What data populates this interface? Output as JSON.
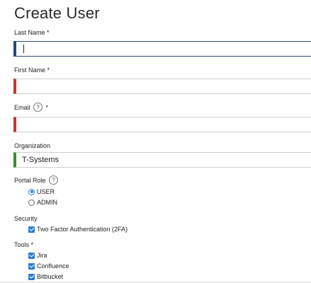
{
  "page": {
    "title": "Create User"
  },
  "form": {
    "last_name": {
      "label": "Last Name *",
      "value": ""
    },
    "first_name": {
      "label": "First Name *",
      "value": ""
    },
    "email": {
      "label": "Email",
      "required_marker": "*",
      "help": "?",
      "value": ""
    },
    "organization": {
      "label": "Organization",
      "value": "T-Systems"
    },
    "portal_role": {
      "label": "Portal Role",
      "help": "?",
      "options": [
        {
          "label": "USER",
          "selected": true
        },
        {
          "label": "ADMIN",
          "selected": false
        }
      ]
    },
    "security": {
      "label": "Security",
      "options": [
        {
          "label": "Two Factor Authentication (2FA)",
          "checked": true
        }
      ]
    },
    "tools": {
      "label": "Tools *",
      "options": [
        {
          "label": "Jira",
          "checked": true
        },
        {
          "label": "Confluence",
          "checked": true
        },
        {
          "label": "Bitbucket",
          "checked": true
        }
      ]
    }
  },
  "colors": {
    "focus_border": "#1f4a7a",
    "error_border": "#c0392b",
    "valid_border": "#3a8f2e",
    "accent": "#2b7bd1"
  }
}
